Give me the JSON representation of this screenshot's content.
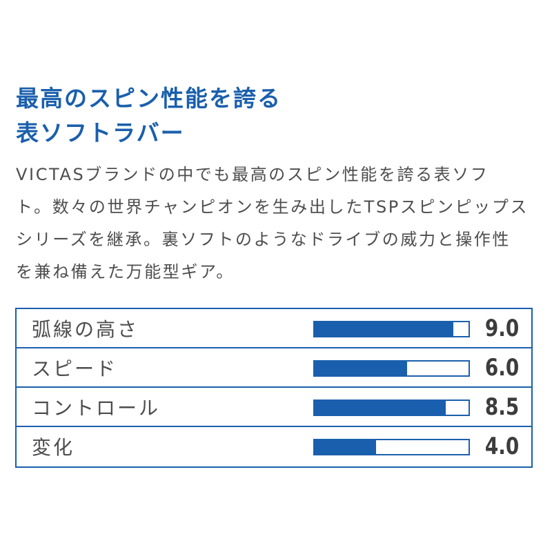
{
  "heading": {
    "line1": "最高のスピン性能を誇る",
    "line2": "表ソフトラバー"
  },
  "description": {
    "lines": [
      "VICTASブランドの中でも最高のスピン性能を誇る表ソフ",
      "ト。数々の世界チャンピオンを生み出したTSPスピンピップス",
      "シリーズを継承。裏ソフトのようなドライブの威力と操作性",
      "を兼ね備えた万能型ギア。"
    ]
  },
  "specs": {
    "max": 10,
    "bar_color": "#1a5fad",
    "rows": [
      {
        "label": "弧線の高さ",
        "value": 9.0,
        "display": "9.0"
      },
      {
        "label": "スピード",
        "value": 6.0,
        "display": "6.0"
      },
      {
        "label": "コントロール",
        "value": 8.5,
        "display": "8.5"
      },
      {
        "label": "変化",
        "value": 4.0,
        "display": "4.0"
      }
    ]
  }
}
